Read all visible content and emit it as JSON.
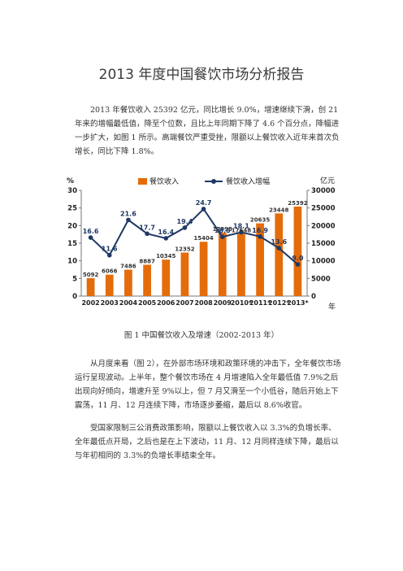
{
  "document": {
    "title": "2013 年度中国餐饮市场分析报告",
    "paragraph1": "2013 年餐饮收入 25392 亿元，同比增长 9.0%，增速继续下滑，创 21 年来的增幅最低值，降至个位数，且比上年同期下降了 4.6 个百分点，降幅进一步扩大，如图 1 所示。高端餐饮严重受挫，限额以上餐饮收入近年来首次负增长，同比下降 1.8%。",
    "figure_caption": "图 1 中国餐饮收入及增速（2002-2013 年）",
    "paragraph2": "从月度来看（图 2），在外部市场环境和政策环境的冲击下，全年餐饮市场运行呈现波动。上半年，整个餐饮市场在 4 月增速陷入全年最低值 7.9%之后出现向好倾向，增速升至 9%以上，但 7 月又滑至一个小低谷，随后开始上下震荡，11 月、12 月连续下降，市场逐步萎缩，最后以 8.6%收官。",
    "paragraph3": "受国家限制三公消费政策影响，限额以上餐饮收入以 3.3%的负增长率、全年最低点开局，之后也是在上下波动，11 月、12 月同样连续下降，最后以与年初相同的 3.3%的负增长率结束全年。"
  },
  "chart_data": {
    "type": "bar",
    "categories": [
      "2002",
      "2003",
      "2004",
      "2005",
      "2006",
      "2007",
      "2008",
      "2009",
      "2010*",
      "2011*",
      "2012*",
      "2013*"
    ],
    "series": [
      {
        "name": "餐饮收入",
        "type": "bar",
        "axis": "right",
        "color": "#e46c0a",
        "values": [
          5092,
          6066,
          7486,
          8887,
          10345,
          12352,
          15404,
          17998,
          17648,
          20635,
          23448,
          25392
        ]
      },
      {
        "name": "餐饮收入增幅",
        "type": "line",
        "axis": "left",
        "color": "#1f3864",
        "values": [
          16.6,
          11.6,
          21.6,
          17.7,
          16.4,
          19.4,
          24.7,
          16.8,
          18.1,
          16.9,
          13.6,
          9.0
        ],
        "labels": [
          "16.6",
          "11.6",
          "21.6",
          "17.7",
          "16.4",
          "19.4",
          "24.7",
          "16.8",
          "18.1",
          "16.9",
          "13.6",
          "9.0"
        ]
      }
    ],
    "bar_labels": [
      "5092",
      "6066",
      "7486",
      "8887",
      "10345",
      "12352",
      "15404",
      "17998",
      "17648",
      "20635",
      "23448",
      "25392"
    ],
    "left_axis": {
      "unit": "%",
      "ylim": [
        0,
        30
      ],
      "ticks": [
        "0",
        "5",
        "10",
        "15",
        "20",
        "25",
        "30"
      ]
    },
    "right_axis": {
      "unit": "亿元",
      "ylim": [
        0,
        30000
      ],
      "ticks": [
        "0",
        "5000",
        "10000",
        "15000",
        "20000",
        "25000",
        "30000"
      ]
    },
    "x_unit": "年",
    "legend_position": "top",
    "grid": false
  }
}
